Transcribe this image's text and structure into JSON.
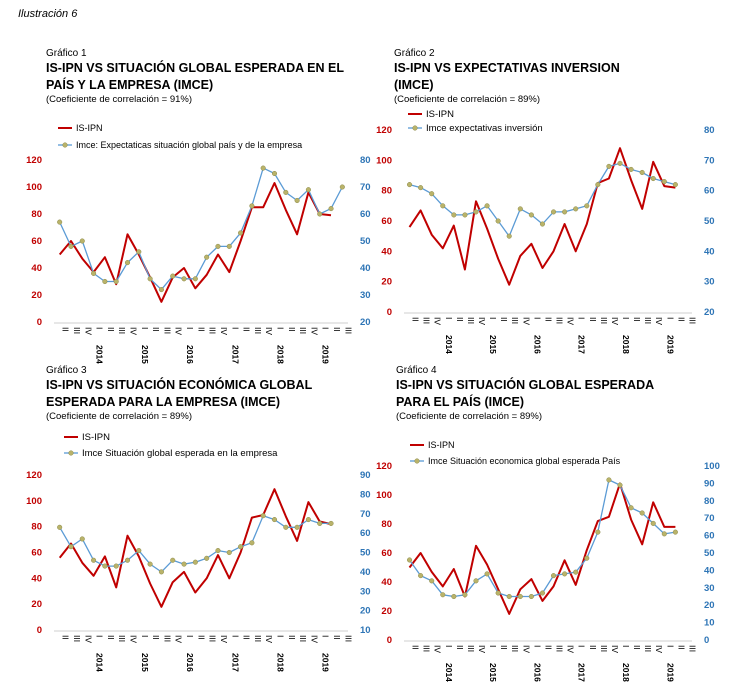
{
  "illustration_label": "Ilustración 6",
  "chart_data": [
    {
      "type": "line",
      "grafico_label": "Gráfico 1",
      "title_lines": [
        "IS-IPN VS SITUACIÓN GLOBAL ESPERADA EN EL",
        "PAÍS Y LA EMPRESA (IMCE)"
      ],
      "correlation": "(Coeficiente de correlación = 91%)",
      "x_tick_labels": [
        "II",
        "III",
        "IV",
        "I",
        "II",
        "III",
        "IV",
        "I",
        "II",
        "III",
        "IV",
        "I",
        "II",
        "III",
        "IV",
        "I",
        "II",
        "III",
        "IV",
        "I",
        "II",
        "III",
        "IV",
        "I",
        "II",
        "III"
      ],
      "year_labels": [
        {
          "index": 3,
          "label": "2014"
        },
        {
          "index": 7,
          "label": "2015"
        },
        {
          "index": 11,
          "label": "2016"
        },
        {
          "index": 15,
          "label": "2017"
        },
        {
          "index": 19,
          "label": "2018"
        },
        {
          "index": 23,
          "label": "2019"
        }
      ],
      "y_left": {
        "min": 0,
        "max": 120,
        "ticks": [
          0,
          20,
          40,
          60,
          80,
          100,
          120
        ],
        "color": "#c00000"
      },
      "y_right": {
        "min": 20,
        "max": 80,
        "ticks": [
          20,
          30,
          40,
          50,
          60,
          70,
          80
        ],
        "color": "#2e75b6"
      },
      "series": [
        {
          "name": "IS-IPN",
          "axis": "left",
          "color": "#c00000",
          "marker": false,
          "values": [
            50,
            60,
            47,
            37,
            48,
            28,
            65,
            50,
            33,
            15,
            33,
            40,
            25,
            35,
            50,
            37,
            60,
            85,
            85,
            103,
            83,
            65,
            96,
            80,
            79
          ]
        },
        {
          "name": "Imce: Expectaticas situación global país y de la empresa",
          "axis": "right",
          "color": "#5b9bd5",
          "marker": true,
          "values": [
            57,
            48,
            50,
            38,
            35,
            35,
            42,
            46,
            36,
            32,
            37,
            36,
            36,
            44,
            48,
            48,
            53,
            63,
            77,
            75,
            68,
            65,
            69,
            60,
            62,
            70
          ]
        }
      ]
    },
    {
      "type": "line",
      "grafico_label": "Gráfico 2",
      "title_lines": [
        "IS-IPN VS EXPECTATIVAS INVERSION",
        "(IMCE)"
      ],
      "correlation": "(Coeficiente de correlación = 89%)",
      "x_tick_labels": [
        "II",
        "III",
        "IV",
        "I",
        "II",
        "III",
        "IV",
        "I",
        "II",
        "III",
        "IV",
        "I",
        "II",
        "III",
        "IV",
        "I",
        "II",
        "III",
        "IV",
        "I",
        "II",
        "III",
        "IV",
        "I",
        "II",
        "III"
      ],
      "year_labels": [
        {
          "index": 3,
          "label": "2014"
        },
        {
          "index": 7,
          "label": "2015"
        },
        {
          "index": 11,
          "label": "2016"
        },
        {
          "index": 15,
          "label": "2017"
        },
        {
          "index": 19,
          "label": "2018"
        },
        {
          "index": 23,
          "label": "2019"
        }
      ],
      "y_left": {
        "min": 0,
        "max": 120,
        "ticks": [
          0,
          20,
          40,
          60,
          80,
          100,
          120
        ],
        "color": "#c00000"
      },
      "y_right": {
        "min": 20,
        "max": 80,
        "ticks": [
          20,
          30,
          40,
          50,
          60,
          70,
          80
        ],
        "color": "#2e75b6"
      },
      "series": [
        {
          "name": "IS-IPN",
          "axis": "left",
          "color": "#c00000",
          "marker": false,
          "values": [
            56,
            67,
            51,
            42,
            57,
            28,
            73,
            55,
            35,
            18,
            37,
            45,
            29,
            40,
            58,
            40,
            58,
            85,
            88,
            108,
            87,
            68,
            99,
            83,
            82
          ]
        },
        {
          "name": "Imce expectativas inversión",
          "axis": "right",
          "color": "#5b9bd5",
          "marker": true,
          "values": [
            62,
            61,
            59,
            55,
            52,
            52,
            53,
            55,
            50,
            45,
            54,
            52,
            49,
            53,
            53,
            54,
            55,
            62,
            68,
            69,
            67,
            66,
            64,
            63,
            62
          ]
        }
      ]
    },
    {
      "type": "line",
      "grafico_label": "Gráfico 3",
      "title_lines": [
        "IS-IPN VS SITUACIÓN ECONÓMICA GLOBAL",
        "ESPERADA PARA LA EMPRESA (IMCE)"
      ],
      "correlation": "(Coeficiente de correlación = 89%)",
      "x_tick_labels": [
        "II",
        "III",
        "IV",
        "I",
        "II",
        "III",
        "IV",
        "I",
        "II",
        "III",
        "IV",
        "I",
        "II",
        "III",
        "IV",
        "I",
        "II",
        "III",
        "IV",
        "I",
        "II",
        "III",
        "IV",
        "I",
        "II",
        "III"
      ],
      "year_labels": [
        {
          "index": 3,
          "label": "2014"
        },
        {
          "index": 7,
          "label": "2015"
        },
        {
          "index": 11,
          "label": "2016"
        },
        {
          "index": 15,
          "label": "2017"
        },
        {
          "index": 19,
          "label": "2018"
        },
        {
          "index": 23,
          "label": "2019"
        }
      ],
      "y_left": {
        "min": 0,
        "max": 120,
        "ticks": [
          0,
          20,
          40,
          60,
          80,
          100,
          120
        ],
        "color": "#c00000"
      },
      "y_right": {
        "min": 10,
        "max": 90,
        "ticks": [
          10,
          20,
          30,
          40,
          50,
          60,
          70,
          80,
          90
        ],
        "color": "#2e75b6"
      },
      "series": [
        {
          "name": "IS-IPN",
          "axis": "left",
          "color": "#c00000",
          "marker": false,
          "values": [
            56,
            67,
            52,
            42,
            57,
            33,
            73,
            57,
            36,
            18,
            37,
            45,
            29,
            40,
            58,
            40,
            60,
            87,
            89,
            109,
            88,
            69,
            99,
            84,
            82
          ]
        },
        {
          "name": "Imce Situación global esperada en la empresa",
          "axis": "right",
          "color": "#5b9bd5",
          "marker": true,
          "values": [
            63,
            53,
            57,
            46,
            43,
            43,
            46,
            51,
            44,
            40,
            46,
            44,
            45,
            47,
            51,
            50,
            53,
            55,
            69,
            67,
            63,
            63,
            67,
            65,
            65
          ]
        }
      ]
    },
    {
      "type": "line",
      "grafico_label": "Gráfico 4",
      "title_lines": [
        "IS-IPN VS SITUACIÓN GLOBAL ESPERADA",
        "PARA EL PAÍS (IMCE)"
      ],
      "correlation": "(Coeficiente de correlación = 89%)",
      "x_tick_labels": [
        "II",
        "III",
        "IV",
        "I",
        "II",
        "III",
        "IV",
        "I",
        "II",
        "III",
        "IV",
        "I",
        "II",
        "III",
        "IV",
        "I",
        "II",
        "III",
        "IV",
        "I",
        "II",
        "III",
        "IV",
        "I",
        "II",
        "III"
      ],
      "year_labels": [
        {
          "index": 3,
          "label": "2014"
        },
        {
          "index": 7,
          "label": "2015"
        },
        {
          "index": 11,
          "label": "2016"
        },
        {
          "index": 15,
          "label": "2017"
        },
        {
          "index": 19,
          "label": "2018"
        },
        {
          "index": 23,
          "label": "2019"
        }
      ],
      "y_left": {
        "min": 0,
        "max": 120,
        "ticks": [
          0,
          20,
          40,
          60,
          80,
          100,
          120
        ],
        "color": "#c00000"
      },
      "y_right": {
        "min": 0,
        "max": 100,
        "ticks": [
          0,
          10,
          20,
          30,
          40,
          50,
          60,
          70,
          80,
          90,
          100
        ],
        "color": "#2e75b6"
      },
      "series": [
        {
          "name": "IS-IPN",
          "axis": "left",
          "color": "#c00000",
          "marker": false,
          "values": [
            50,
            60,
            47,
            37,
            49,
            30,
            65,
            52,
            35,
            18,
            35,
            42,
            27,
            37,
            55,
            38,
            62,
            82,
            85,
            108,
            83,
            66,
            95,
            78,
            78
          ]
        },
        {
          "name": "Imce Situación economica global esperada País",
          "axis": "right",
          "color": "#5b9bd5",
          "marker": true,
          "values": [
            46,
            37,
            34,
            26,
            25,
            26,
            34,
            38,
            27,
            25,
            25,
            25,
            27,
            37,
            38,
            39,
            47,
            62,
            92,
            89,
            76,
            73,
            67,
            61,
            62
          ]
        }
      ]
    }
  ]
}
